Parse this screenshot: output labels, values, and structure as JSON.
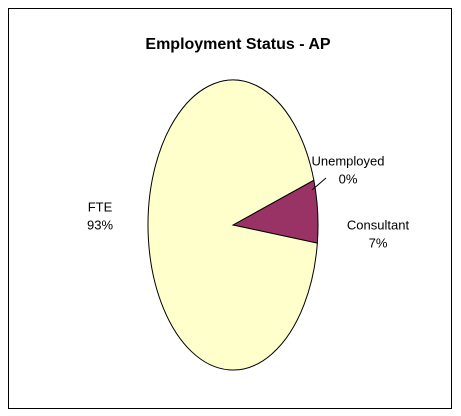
{
  "chart_data": {
    "type": "pie",
    "title": "Employment Status - AP",
    "categories": [
      "Unemployed",
      "Consultant",
      "FTE"
    ],
    "values": [
      0,
      7,
      93
    ],
    "value_labels": [
      "0%",
      "7%",
      "93%"
    ],
    "colors": [
      "#ffffff",
      "#993366",
      "#ffffcc"
    ]
  }
}
